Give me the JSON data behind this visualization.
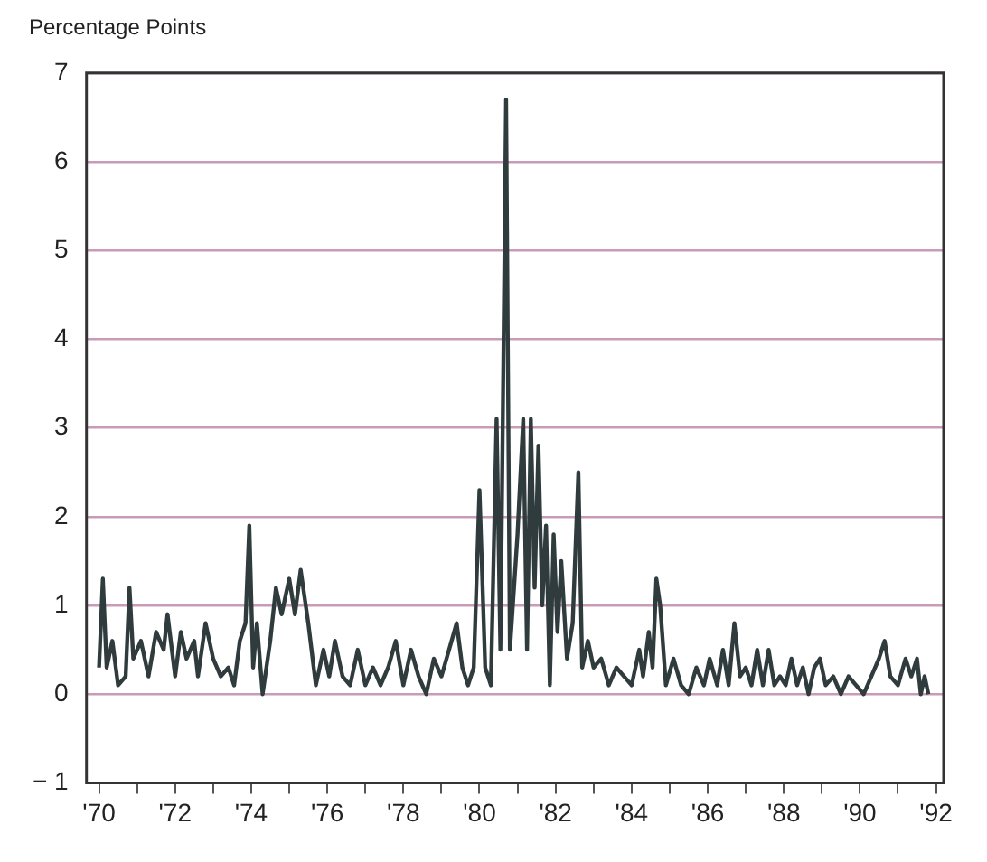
{
  "chart_data": {
    "type": "line",
    "ylabel": "Percentage Points",
    "x": [
      1970.0,
      1970.1,
      1970.2,
      1970.35,
      1970.5,
      1970.7,
      1970.8,
      1970.9,
      1971.1,
      1971.3,
      1971.5,
      1971.7,
      1971.8,
      1972.0,
      1972.15,
      1972.3,
      1972.5,
      1972.6,
      1972.8,
      1973.0,
      1973.2,
      1973.4,
      1973.55,
      1973.7,
      1973.85,
      1973.95,
      1974.05,
      1974.15,
      1974.3,
      1974.5,
      1974.65,
      1974.8,
      1975.0,
      1975.15,
      1975.3,
      1975.5,
      1975.7,
      1975.9,
      1976.05,
      1976.2,
      1976.4,
      1976.6,
      1976.8,
      1977.0,
      1977.2,
      1977.4,
      1977.6,
      1977.8,
      1978.0,
      1978.2,
      1978.4,
      1978.6,
      1978.8,
      1979.0,
      1979.2,
      1979.4,
      1979.55,
      1979.7,
      1979.85,
      1980.0,
      1980.15,
      1980.3,
      1980.45,
      1980.55,
      1980.7,
      1980.8,
      1981.0,
      1981.15,
      1981.25,
      1981.35,
      1981.45,
      1981.55,
      1981.65,
      1981.75,
      1981.85,
      1981.95,
      1982.05,
      1982.15,
      1982.3,
      1982.45,
      1982.6,
      1982.7,
      1982.85,
      1983.0,
      1983.2,
      1983.4,
      1983.6,
      1983.8,
      1984.0,
      1984.2,
      1984.3,
      1984.45,
      1984.55,
      1984.65,
      1984.75,
      1984.9,
      1985.1,
      1985.3,
      1985.5,
      1985.7,
      1985.9,
      1986.05,
      1986.25,
      1986.4,
      1986.55,
      1986.7,
      1986.85,
      1987.0,
      1987.15,
      1987.3,
      1987.45,
      1987.6,
      1987.75,
      1987.9,
      1988.05,
      1988.2,
      1988.35,
      1988.5,
      1988.65,
      1988.8,
      1988.95,
      1989.1,
      1989.3,
      1989.5,
      1989.7,
      1989.9,
      1990.1,
      1990.3,
      1990.5,
      1990.65,
      1990.8,
      1991.0,
      1991.2,
      1991.35,
      1991.5,
      1991.6,
      1991.7,
      1991.8
    ],
    "series": [
      {
        "color": "#2f3b3c",
        "values": [
          0.3,
          1.3,
          0.3,
          0.6,
          0.1,
          0.2,
          1.2,
          0.4,
          0.6,
          0.2,
          0.7,
          0.5,
          0.9,
          0.2,
          0.7,
          0.4,
          0.6,
          0.2,
          0.8,
          0.4,
          0.2,
          0.3,
          0.1,
          0.6,
          0.8,
          1.9,
          0.3,
          0.8,
          0.0,
          0.6,
          1.2,
          0.9,
          1.3,
          0.9,
          1.4,
          0.8,
          0.1,
          0.5,
          0.2,
          0.6,
          0.2,
          0.1,
          0.5,
          0.1,
          0.3,
          0.1,
          0.3,
          0.6,
          0.1,
          0.5,
          0.2,
          0.0,
          0.4,
          0.2,
          0.5,
          0.8,
          0.3,
          0.1,
          0.3,
          2.3,
          0.3,
          0.1,
          3.1,
          0.5,
          6.7,
          0.5,
          1.8,
          3.1,
          0.5,
          3.1,
          1.2,
          2.8,
          1.0,
          1.9,
          0.1,
          1.8,
          0.7,
          1.5,
          0.4,
          0.8,
          2.5,
          0.3,
          0.6,
          0.3,
          0.4,
          0.1,
          0.3,
          0.2,
          0.1,
          0.5,
          0.2,
          0.7,
          0.3,
          1.3,
          1.0,
          0.1,
          0.4,
          0.1,
          0.0,
          0.3,
          0.1,
          0.4,
          0.1,
          0.5,
          0.1,
          0.8,
          0.2,
          0.3,
          0.1,
          0.5,
          0.1,
          0.5,
          0.1,
          0.2,
          0.1,
          0.4,
          0.1,
          0.3,
          0.0,
          0.3,
          0.4,
          0.1,
          0.2,
          0.0,
          0.2,
          0.1,
          0.0,
          0.2,
          0.4,
          0.6,
          0.2,
          0.1,
          0.4,
          0.2,
          0.4,
          0.0,
          0.2,
          0.0
        ]
      }
    ],
    "xlim": [
      1969.67,
      1992.2
    ],
    "xticks": [
      {
        "value": 1970,
        "label": "'70"
      },
      {
        "value": 1971,
        "label": null
      },
      {
        "value": 1972,
        "label": "'72"
      },
      {
        "value": 1973,
        "label": null
      },
      {
        "value": 1974,
        "label": "'74"
      },
      {
        "value": 1975,
        "label": null
      },
      {
        "value": 1976,
        "label": "'76"
      },
      {
        "value": 1977,
        "label": null
      },
      {
        "value": 1978,
        "label": "'78"
      },
      {
        "value": 1979,
        "label": null
      },
      {
        "value": 1980,
        "label": "'80"
      },
      {
        "value": 1981,
        "label": null
      },
      {
        "value": 1982,
        "label": "'82"
      },
      {
        "value": 1983,
        "label": null
      },
      {
        "value": 1984,
        "label": "'84"
      },
      {
        "value": 1985,
        "label": null
      },
      {
        "value": 1986,
        "label": "'86"
      },
      {
        "value": 1987,
        "label": null
      },
      {
        "value": 1988,
        "label": "'88"
      },
      {
        "value": 1989,
        "label": null
      },
      {
        "value": 1990,
        "label": "'90"
      },
      {
        "value": 1991,
        "label": null
      },
      {
        "value": 1992,
        "label": "'92"
      }
    ],
    "ylim": [
      -1,
      7
    ],
    "yticks": [
      -1,
      0,
      1,
      2,
      3,
      4,
      5,
      6,
      7
    ],
    "grid": "y",
    "legend": false,
    "marker": "none",
    "line_style": "solid"
  }
}
